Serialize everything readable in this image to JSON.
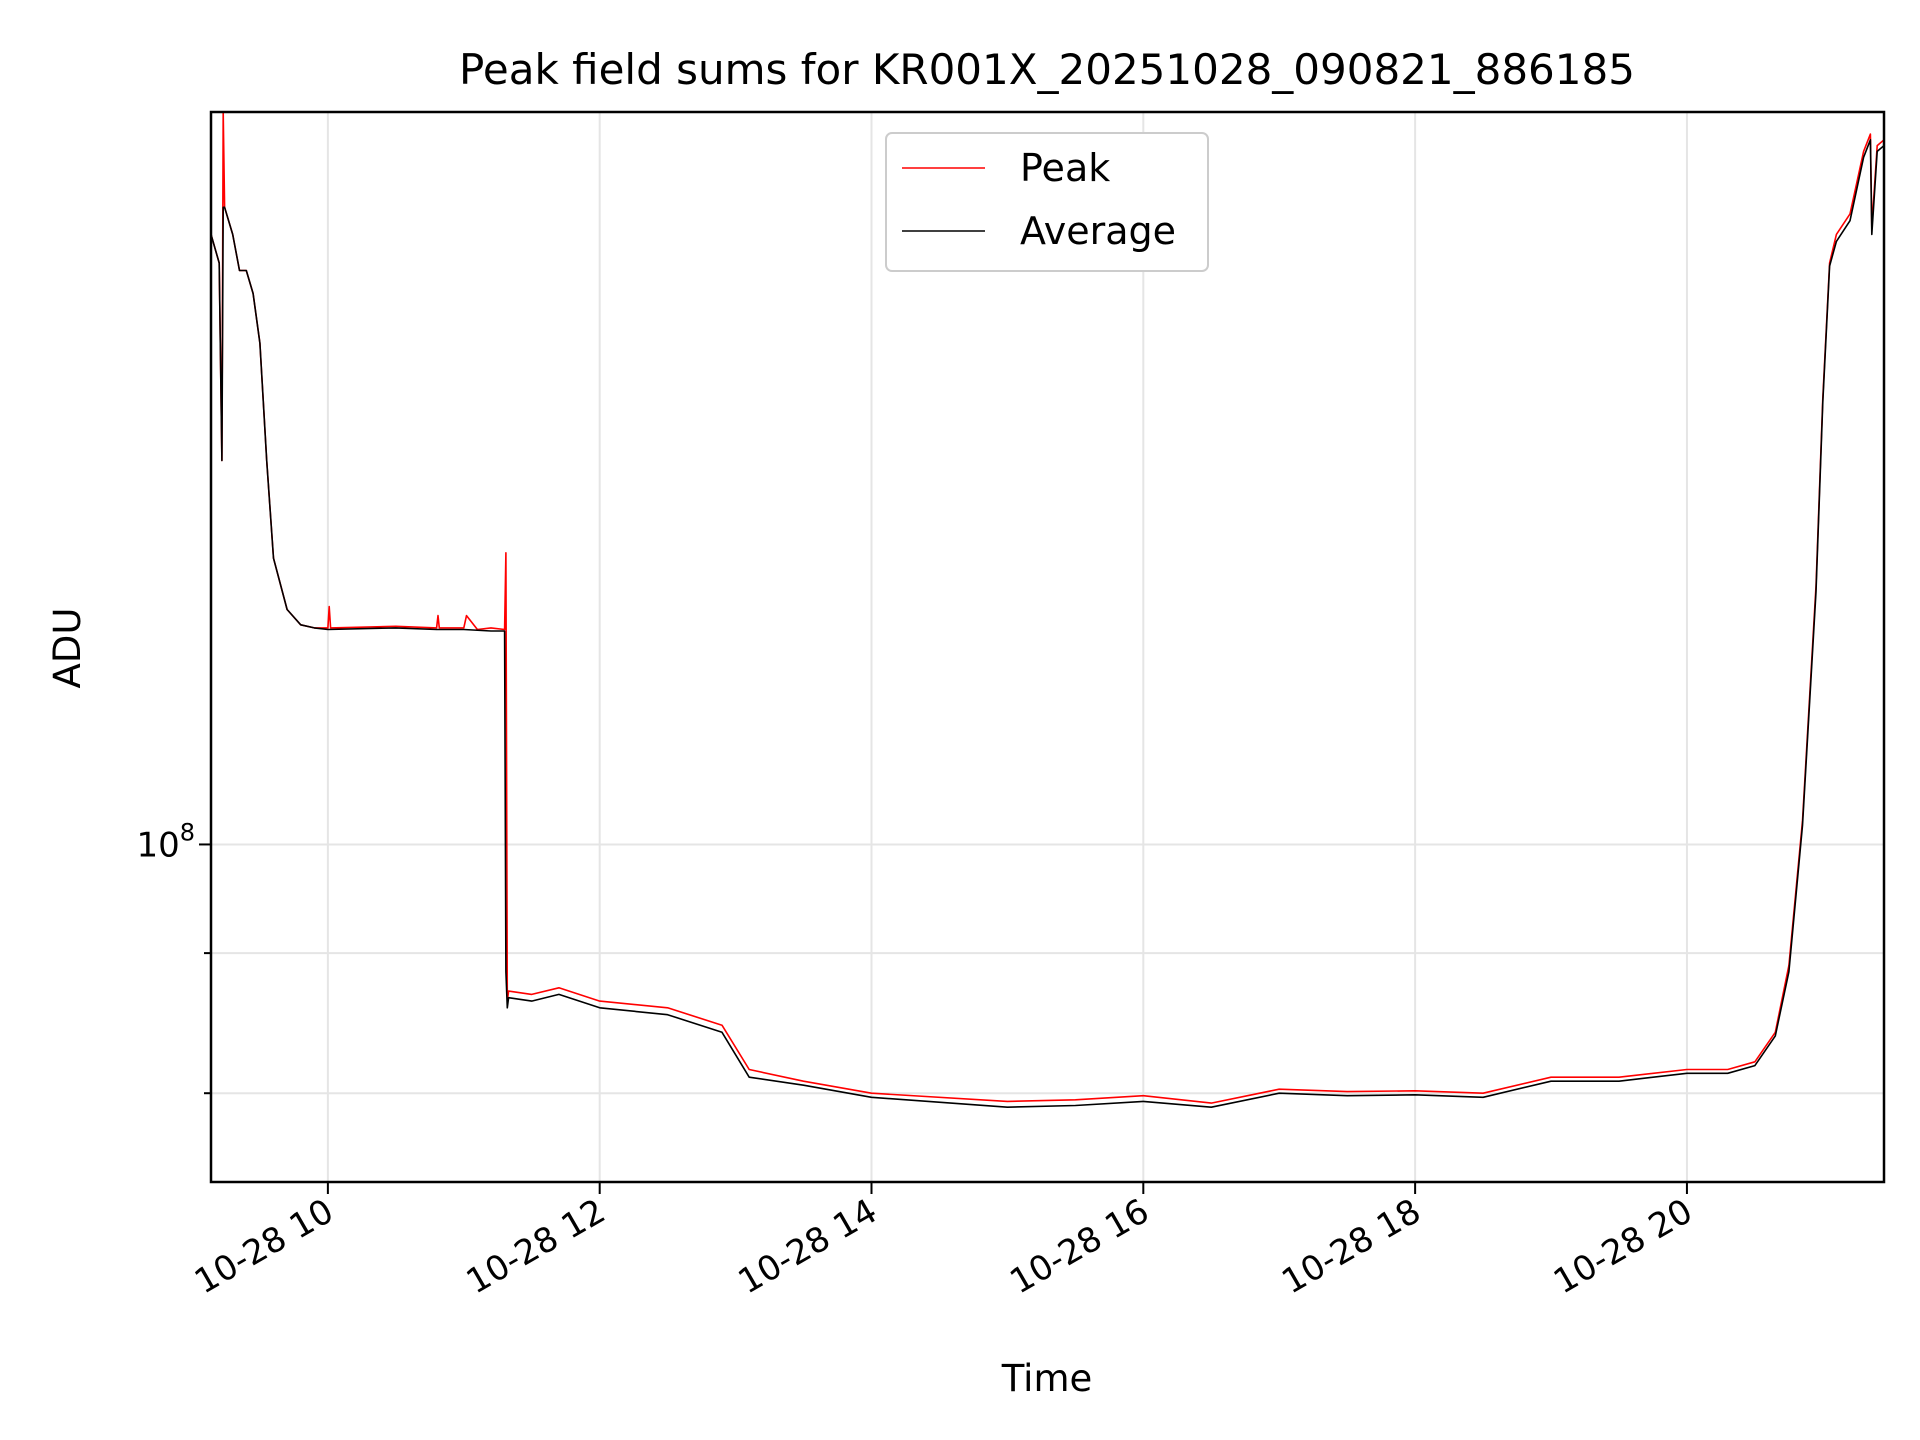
{
  "chart_data": {
    "type": "line",
    "title": "Peak field sums for KR001X_20251028_090821_886185",
    "xlabel": "Time",
    "ylabel": "ADU",
    "yscale": "log",
    "xlim": [
      9.14,
      21.45
    ],
    "ylim": [
      50000000,
      450000000
    ],
    "x_ticks": [
      {
        "value": 10,
        "label": "10-28 10"
      },
      {
        "value": 12,
        "label": "10-28 12"
      },
      {
        "value": 14,
        "label": "10-28 14"
      },
      {
        "value": 16,
        "label": "10-28 16"
      },
      {
        "value": 18,
        "label": "10-28 18"
      },
      {
        "value": 20,
        "label": "10-28 20"
      }
    ],
    "y_major_ticks": [
      {
        "value": 100000000,
        "base": "10",
        "exp": "8"
      }
    ],
    "y_minor_ticks": [
      60000000,
      80000000
    ],
    "grid": true,
    "legend_position": "upper-center",
    "series": [
      {
        "name": "Peak",
        "color": "#ff0000",
        "x": [
          9.14,
          9.2,
          9.22,
          9.23,
          9.24,
          9.3,
          9.35,
          9.4,
          9.45,
          9.5,
          9.55,
          9.6,
          9.7,
          9.8,
          9.9,
          10.0,
          10.01,
          10.02,
          10.5,
          10.8,
          10.81,
          10.82,
          11.0,
          11.02,
          11.1,
          11.2,
          11.3,
          11.31,
          11.32,
          11.33,
          11.5,
          11.7,
          12.0,
          12.5,
          12.9,
          13.1,
          13.5,
          14.0,
          15.0,
          15.5,
          16.0,
          16.5,
          17.0,
          17.5,
          18.0,
          18.5,
          19.0,
          19.5,
          20.0,
          20.3,
          20.5,
          20.65,
          20.75,
          20.85,
          20.95,
          21.0,
          21.05,
          21.1,
          21.2,
          21.3,
          21.35,
          21.36,
          21.4,
          21.45
        ],
        "y": [
          350000000,
          330000000,
          220000000,
          450000000,
          370000000,
          350000000,
          325000000,
          325000000,
          310000000,
          280000000,
          220000000,
          180000000,
          162000000,
          157000000,
          156000000,
          156000000,
          163000000,
          156000000,
          156500000,
          156000000,
          160000000,
          156000000,
          156000000,
          160000000,
          155500000,
          156000000,
          155500000,
          182000000,
          72500000,
          74000000,
          73500000,
          74500000,
          72500000,
          71500000,
          69000000,
          63000000,
          61500000,
          60000000,
          59000000,
          59200000,
          59700000,
          58800000,
          60500000,
          60200000,
          60300000,
          60000000,
          62000000,
          62000000,
          63000000,
          63000000,
          64000000,
          68000000,
          78000000,
          105000000,
          170000000,
          250000000,
          330000000,
          350000000,
          365000000,
          415000000,
          430000000,
          355000000,
          420000000,
          425000000
        ]
      },
      {
        "name": "Average",
        "color": "#000000",
        "x": [
          9.14,
          9.2,
          9.22,
          9.23,
          9.24,
          9.3,
          9.35,
          9.4,
          9.45,
          9.5,
          9.55,
          9.6,
          9.7,
          9.8,
          9.9,
          10.0,
          10.5,
          10.8,
          11.0,
          11.2,
          11.3,
          11.31,
          11.32,
          11.33,
          11.5,
          11.7,
          12.0,
          12.5,
          12.9,
          13.1,
          13.5,
          14.0,
          15.0,
          15.5,
          16.0,
          16.5,
          17.0,
          17.5,
          18.0,
          18.5,
          19.0,
          19.5,
          20.0,
          20.3,
          20.5,
          20.65,
          20.75,
          20.85,
          20.95,
          21.0,
          21.05,
          21.1,
          21.2,
          21.3,
          21.35,
          21.36,
          21.4,
          21.45
        ],
        "y": [
          350000000,
          330000000,
          220000000,
          370000000,
          370000000,
          350000000,
          325000000,
          325000000,
          310000000,
          280000000,
          220000000,
          180000000,
          162000000,
          157000000,
          156000000,
          155500000,
          156000000,
          155500000,
          155500000,
          155000000,
          155000000,
          77000000,
          71500000,
          73000000,
          72500000,
          73500000,
          71500000,
          70500000,
          68000000,
          62000000,
          61000000,
          59500000,
          58300000,
          58500000,
          59000000,
          58300000,
          60000000,
          59700000,
          59800000,
          59500000,
          61500000,
          61500000,
          62500000,
          62500000,
          63500000,
          67500000,
          77000000,
          104000000,
          168000000,
          248000000,
          328000000,
          345000000,
          360000000,
          410000000,
          425000000,
          350000000,
          415000000,
          420000000
        ]
      }
    ]
  }
}
